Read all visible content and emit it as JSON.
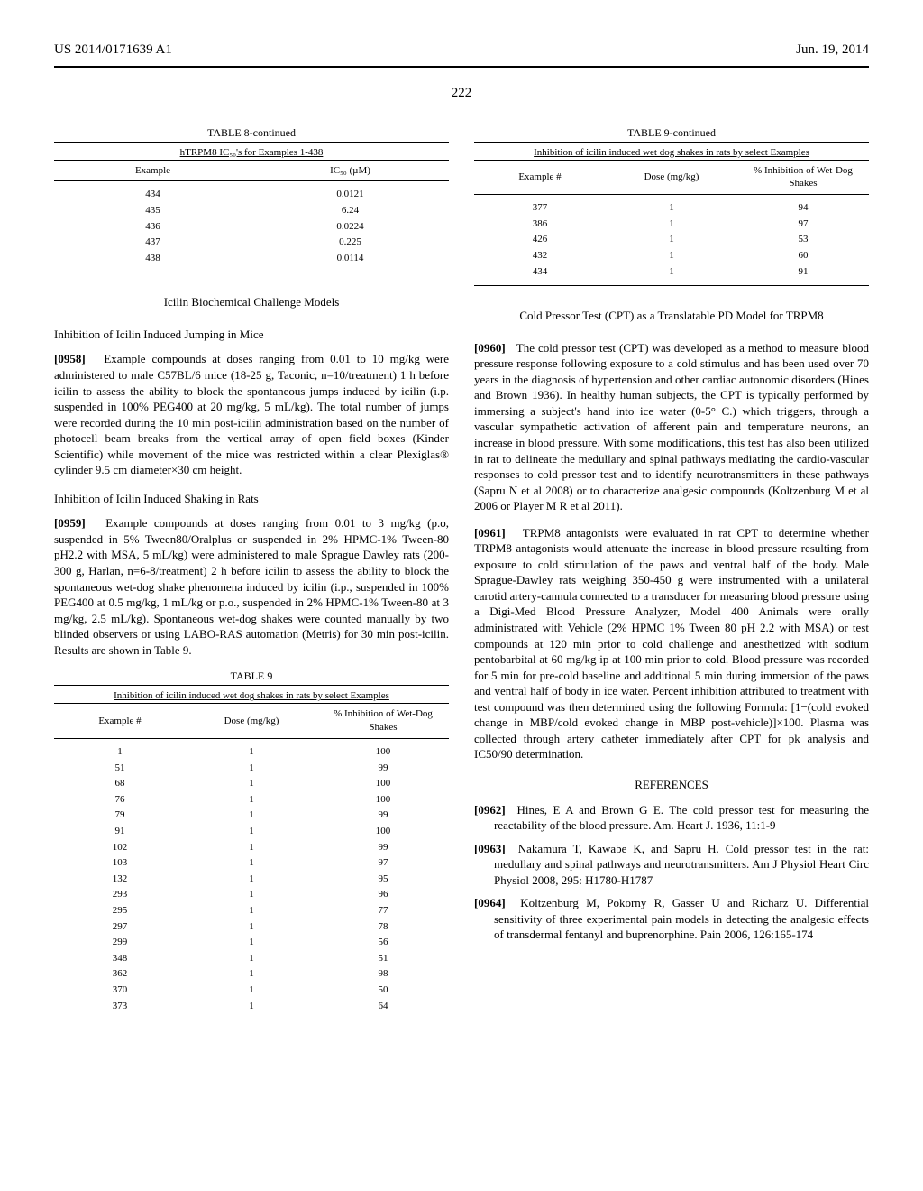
{
  "header": {
    "pub_number": "US 2014/0171639 A1",
    "date": "Jun. 19, 2014",
    "page": "222"
  },
  "table8": {
    "label": "TABLE 8-continued",
    "caption": "hTRPM8 IC₅₀'s for Examples 1-438",
    "columns": [
      "Example",
      "IC₅₀ (µM)"
    ],
    "rows": [
      [
        "434",
        "0.0121"
      ],
      [
        "435",
        "6.24"
      ],
      [
        "436",
        "0.0224"
      ],
      [
        "437",
        "0.225"
      ],
      [
        "438",
        "0.0114"
      ]
    ]
  },
  "section1_title": "Icilin Biochemical Challenge Models",
  "sub1_title": "Inhibition of Icilin Induced Jumping in Mice",
  "p0958_num": "[0958]",
  "p0958": "Example compounds at doses ranging from 0.01 to 10 mg/kg were administered to male C57BL/6 mice (18-25 g, Taconic, n=10/treatment) 1 h before icilin to assess the ability to block the spontaneous jumps induced by icilin (i.p. suspended in 100% PEG400 at 20 mg/kg, 5 mL/kg). The total number of jumps were recorded during the 10 min post-icilin administration based on the number of photocell beam breaks from the vertical array of open field boxes (Kinder Scientific) while movement of the mice was restricted within a clear Plexiglas® cylinder 9.5 cm diameter×30 cm height.",
  "sub2_title": "Inhibition of Icilin Induced Shaking in Rats",
  "p0959_num": "[0959]",
  "p0959": "Example compounds at doses ranging from 0.01 to 3 mg/kg (p.o, suspended in 5% Tween80/Oralplus or suspended in 2% HPMC-1% Tween-80 pH2.2 with MSA, 5 mL/kg) were administered to male Sprague Dawley rats (200-300 g, Harlan, n=6-8/treatment) 2 h before icilin to assess the ability to block the spontaneous wet-dog shake phenomena induced by icilin (i.p., suspended in 100% PEG400 at 0.5 mg/kg, 1 mL/kg or p.o., suspended in 2% HPMC-1% Tween-80 at 3 mg/kg, 2.5 mL/kg). Spontaneous wet-dog shakes were counted manually by two blinded observers or using LABO-RAS automation (Metris) for 30 min post-icilin. Results are shown in Table 9.",
  "table9": {
    "label": "TABLE 9",
    "caption": "Inhibition of icilin induced wet dog shakes in rats by select Examples",
    "columns": [
      "Example #",
      "Dose (mg/kg)",
      "% Inhibition of Wet-Dog Shakes"
    ],
    "rows": [
      [
        "1",
        "1",
        "100"
      ],
      [
        "51",
        "1",
        "99"
      ],
      [
        "68",
        "1",
        "100"
      ],
      [
        "76",
        "1",
        "100"
      ],
      [
        "79",
        "1",
        "99"
      ],
      [
        "91",
        "1",
        "100"
      ],
      [
        "102",
        "1",
        "99"
      ],
      [
        "103",
        "1",
        "97"
      ],
      [
        "132",
        "1",
        "95"
      ],
      [
        "293",
        "1",
        "96"
      ],
      [
        "295",
        "1",
        "77"
      ],
      [
        "297",
        "1",
        "78"
      ],
      [
        "299",
        "1",
        "56"
      ],
      [
        "348",
        "1",
        "51"
      ],
      [
        "362",
        "1",
        "98"
      ],
      [
        "370",
        "1",
        "50"
      ],
      [
        "373",
        "1",
        "64"
      ]
    ]
  },
  "table9c": {
    "label": "TABLE 9-continued",
    "caption": "Inhibition of icilin induced wet dog shakes in rats by select Examples",
    "columns": [
      "Example #",
      "Dose (mg/kg)",
      "% Inhibition of Wet-Dog Shakes"
    ],
    "rows": [
      [
        "377",
        "1",
        "94"
      ],
      [
        "386",
        "1",
        "97"
      ],
      [
        "426",
        "1",
        "53"
      ],
      [
        "432",
        "1",
        "60"
      ],
      [
        "434",
        "1",
        "91"
      ]
    ]
  },
  "section2_title": "Cold Pressor Test (CPT) as a Translatable PD Model for TRPM8",
  "p0960_num": "[0960]",
  "p0960": "The cold pressor test (CPT) was developed as a method to measure blood pressure response following exposure to a cold stimulus and has been used over 70 years in the diagnosis of hypertension and other cardiac autonomic disorders (Hines and Brown 1936). In healthy human subjects, the CPT is typically performed by immersing a subject's hand into ice water (0-5° C.) which triggers, through a vascular sympathetic activation of afferent pain and temperature neurons, an increase in blood pressure. With some modifications, this test has also been utilized in rat to delineate the medullary and spinal pathways mediating the cardio-vascular responses to cold pressor test and to identify neurotransmitters in these pathways (Sapru N et al 2008) or to characterize analgesic compounds (Koltzenburg M et al 2006 or Player M R et al 2011).",
  "p0961_num": "[0961]",
  "p0961": "TRPM8 antagonists were evaluated in rat CPT to determine whether TRPM8 antagonists would attenuate the increase in blood pressure resulting from exposure to cold stimulation of the paws and ventral half of the body. Male Sprague-Dawley rats weighing 350-450 g were instrumented with a unilateral carotid artery-cannula connected to a transducer for measuring blood pressure using a Digi-Med Blood Pressure Analyzer, Model 400 Animals were orally administrated with Vehicle (2% HPMC 1% Tween 80 pH 2.2 with MSA) or test compounds at 120 min prior to cold challenge and anesthetized with sodium pentobarbital at 60 mg/kg ip at 100 min prior to cold. Blood pressure was recorded for 5 min for pre-cold baseline and additional 5 min during immersion of the paws and ventral half of body in ice water. Percent inhibition attributed to treatment with test compound was then determined using the following Formula: [1−(cold evoked change in MBP/cold evoked change in MBP post-vehicle)]×100. Plasma was collected through artery catheter immediately after CPT for pk analysis and IC50/90 determination.",
  "refs_title": "REFERENCES",
  "r0962_num": "[0962]",
  "r0962": "Hines, E A and Brown G E. The cold pressor test for measuring the reactability of the blood pressure. Am. Heart J. 1936, 11:1-9",
  "r0963_num": "[0963]",
  "r0963": "Nakamura T, Kawabe K, and Sapru H. Cold pressor test in the rat: medullary and spinal pathways and neurotransmitters. Am J Physiol Heart Circ Physiol 2008, 295: H1780-H1787",
  "r0964_num": "[0964]",
  "r0964": "Koltzenburg M, Pokorny R, Gasser U and Richarz U. Differential sensitivity of three experimental pain models in detecting the analgesic effects of transdermal fentanyl and buprenorphine. Pain 2006, 126:165-174"
}
